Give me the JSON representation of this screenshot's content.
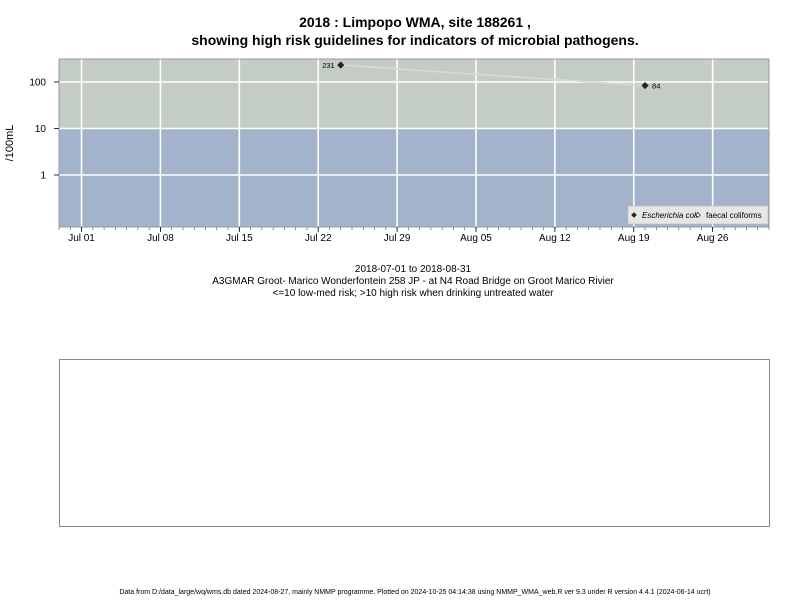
{
  "title_line1": "2018 : Limpopo WMA, site 188261 ,",
  "title_line2": "showing high risk guidelines for indicators of microbial pathogens.",
  "subtitle": {
    "date_range": "2018-07-01 to 2018-08-31",
    "station": "A3GMAR Groot- Marico Wonderfontein 258 JP - at N4 Road Bridge on Groot Marico Rivier",
    "risk_note": "<=10 low-med risk; >10 high risk when drinking untreated water"
  },
  "footer": "Data from D:/data_large/wq/wms.db dated 2024-08-27, mainly NMMP programme. Plotted on 2024-10-25 04:14:38 using NMMP_WMA_web.R ver 9.3 under R version 4.4.1 (2024-06-14 ucrt)",
  "colors": {
    "high_risk_band": "#c3cdc3",
    "low_risk_band": "#a3b3cb",
    "grid": "#ffffff",
    "line": "#d9d9d9"
  },
  "chart_data": {
    "type": "line",
    "title": "2018 : Limpopo WMA, site 188261 ,",
    "ylabel": "/100mL",
    "y_scale": "log",
    "y_ticks": [
      1,
      10,
      100
    ],
    "y_tick_labels": [
      "1",
      "10",
      "100"
    ],
    "risk_threshold": 10,
    "xlim": [
      "2018-06-29",
      "2018-08-31"
    ],
    "x_ticks": [
      "2018-07-01",
      "2018-07-08",
      "2018-07-15",
      "2018-07-22",
      "2018-07-29",
      "2018-08-05",
      "2018-08-12",
      "2018-08-19",
      "2018-08-26"
    ],
    "x_tick_labels": [
      "Jul 01",
      "Jul 08",
      "Jul 15",
      "Jul 22",
      "Jul 29",
      "Aug 05",
      "Aug 12",
      "Aug 19",
      "Aug 26"
    ],
    "legend_position": "bottom-right",
    "series": [
      {
        "name": "Escherichia coli",
        "marker": "filled-diamond",
        "points": [
          {
            "x": "2018-07-24",
            "y": 231,
            "label": "231"
          },
          {
            "x": "2018-08-20",
            "y": 84,
            "label": "84"
          }
        ]
      },
      {
        "name": "faecal coliforms",
        "marker": "open-diamond",
        "points": []
      }
    ]
  }
}
